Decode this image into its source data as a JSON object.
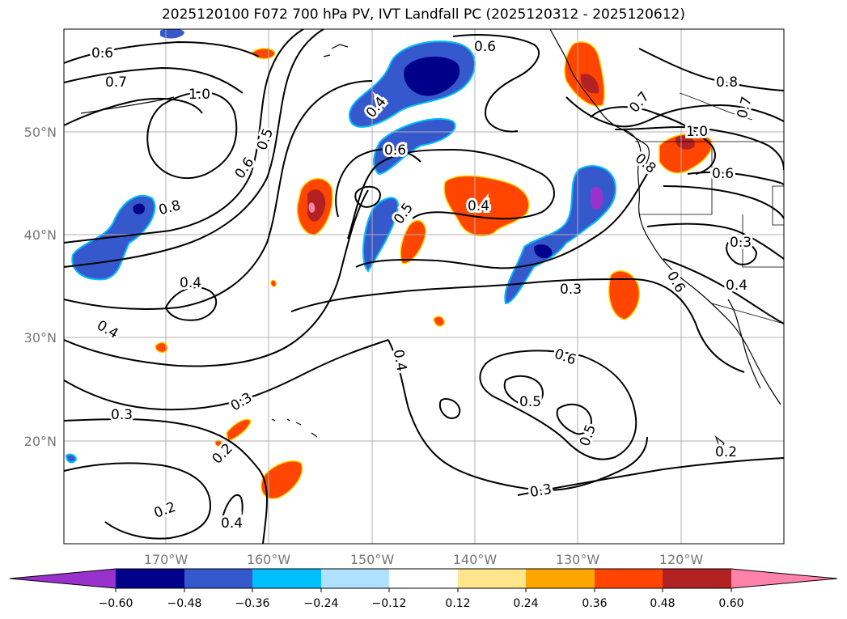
{
  "title": "2025120100 F072 700 hPa PV, IVT Landfall PC (2025120312 - 2025120612)",
  "map": {
    "lat_labels": [
      "50°N",
      "40°N",
      "30°N",
      "20°N"
    ],
    "lon_labels": [
      "170°W",
      "160°W",
      "150°W",
      "140°W",
      "130°W",
      "120°W"
    ],
    "grid": true
  },
  "contour_labels": [
    "0.6",
    "0.7",
    "1.0",
    "0.5",
    "0.6",
    "0.8",
    "0.4",
    "0.6",
    "0.5",
    "0.4",
    "0.6",
    "0.7",
    "0.8",
    "0.7",
    "1.0",
    "0.8",
    "0.6",
    "0.3",
    "0.4",
    "0.6",
    "0.3",
    "0.4",
    "0.4",
    "0.4",
    "0.3",
    "0.3",
    "0.2",
    "0.2",
    "0.4",
    "0.5",
    "0.5",
    "0.3",
    "0.2"
  ],
  "colorbar": {
    "ticks": [
      "−0.60",
      "−0.48",
      "−0.36",
      "−0.24",
      "−0.12",
      "0.12",
      "0.24",
      "0.36",
      "0.48",
      "0.60"
    ],
    "colors": [
      "#9932cc",
      "#00008b",
      "#3559cc",
      "#00bfff",
      "#b0e2ff",
      "#ffffff",
      "#ffe68a",
      "#ffa500",
      "#ff4500",
      "#b22222",
      "#ff82ab"
    ]
  }
}
